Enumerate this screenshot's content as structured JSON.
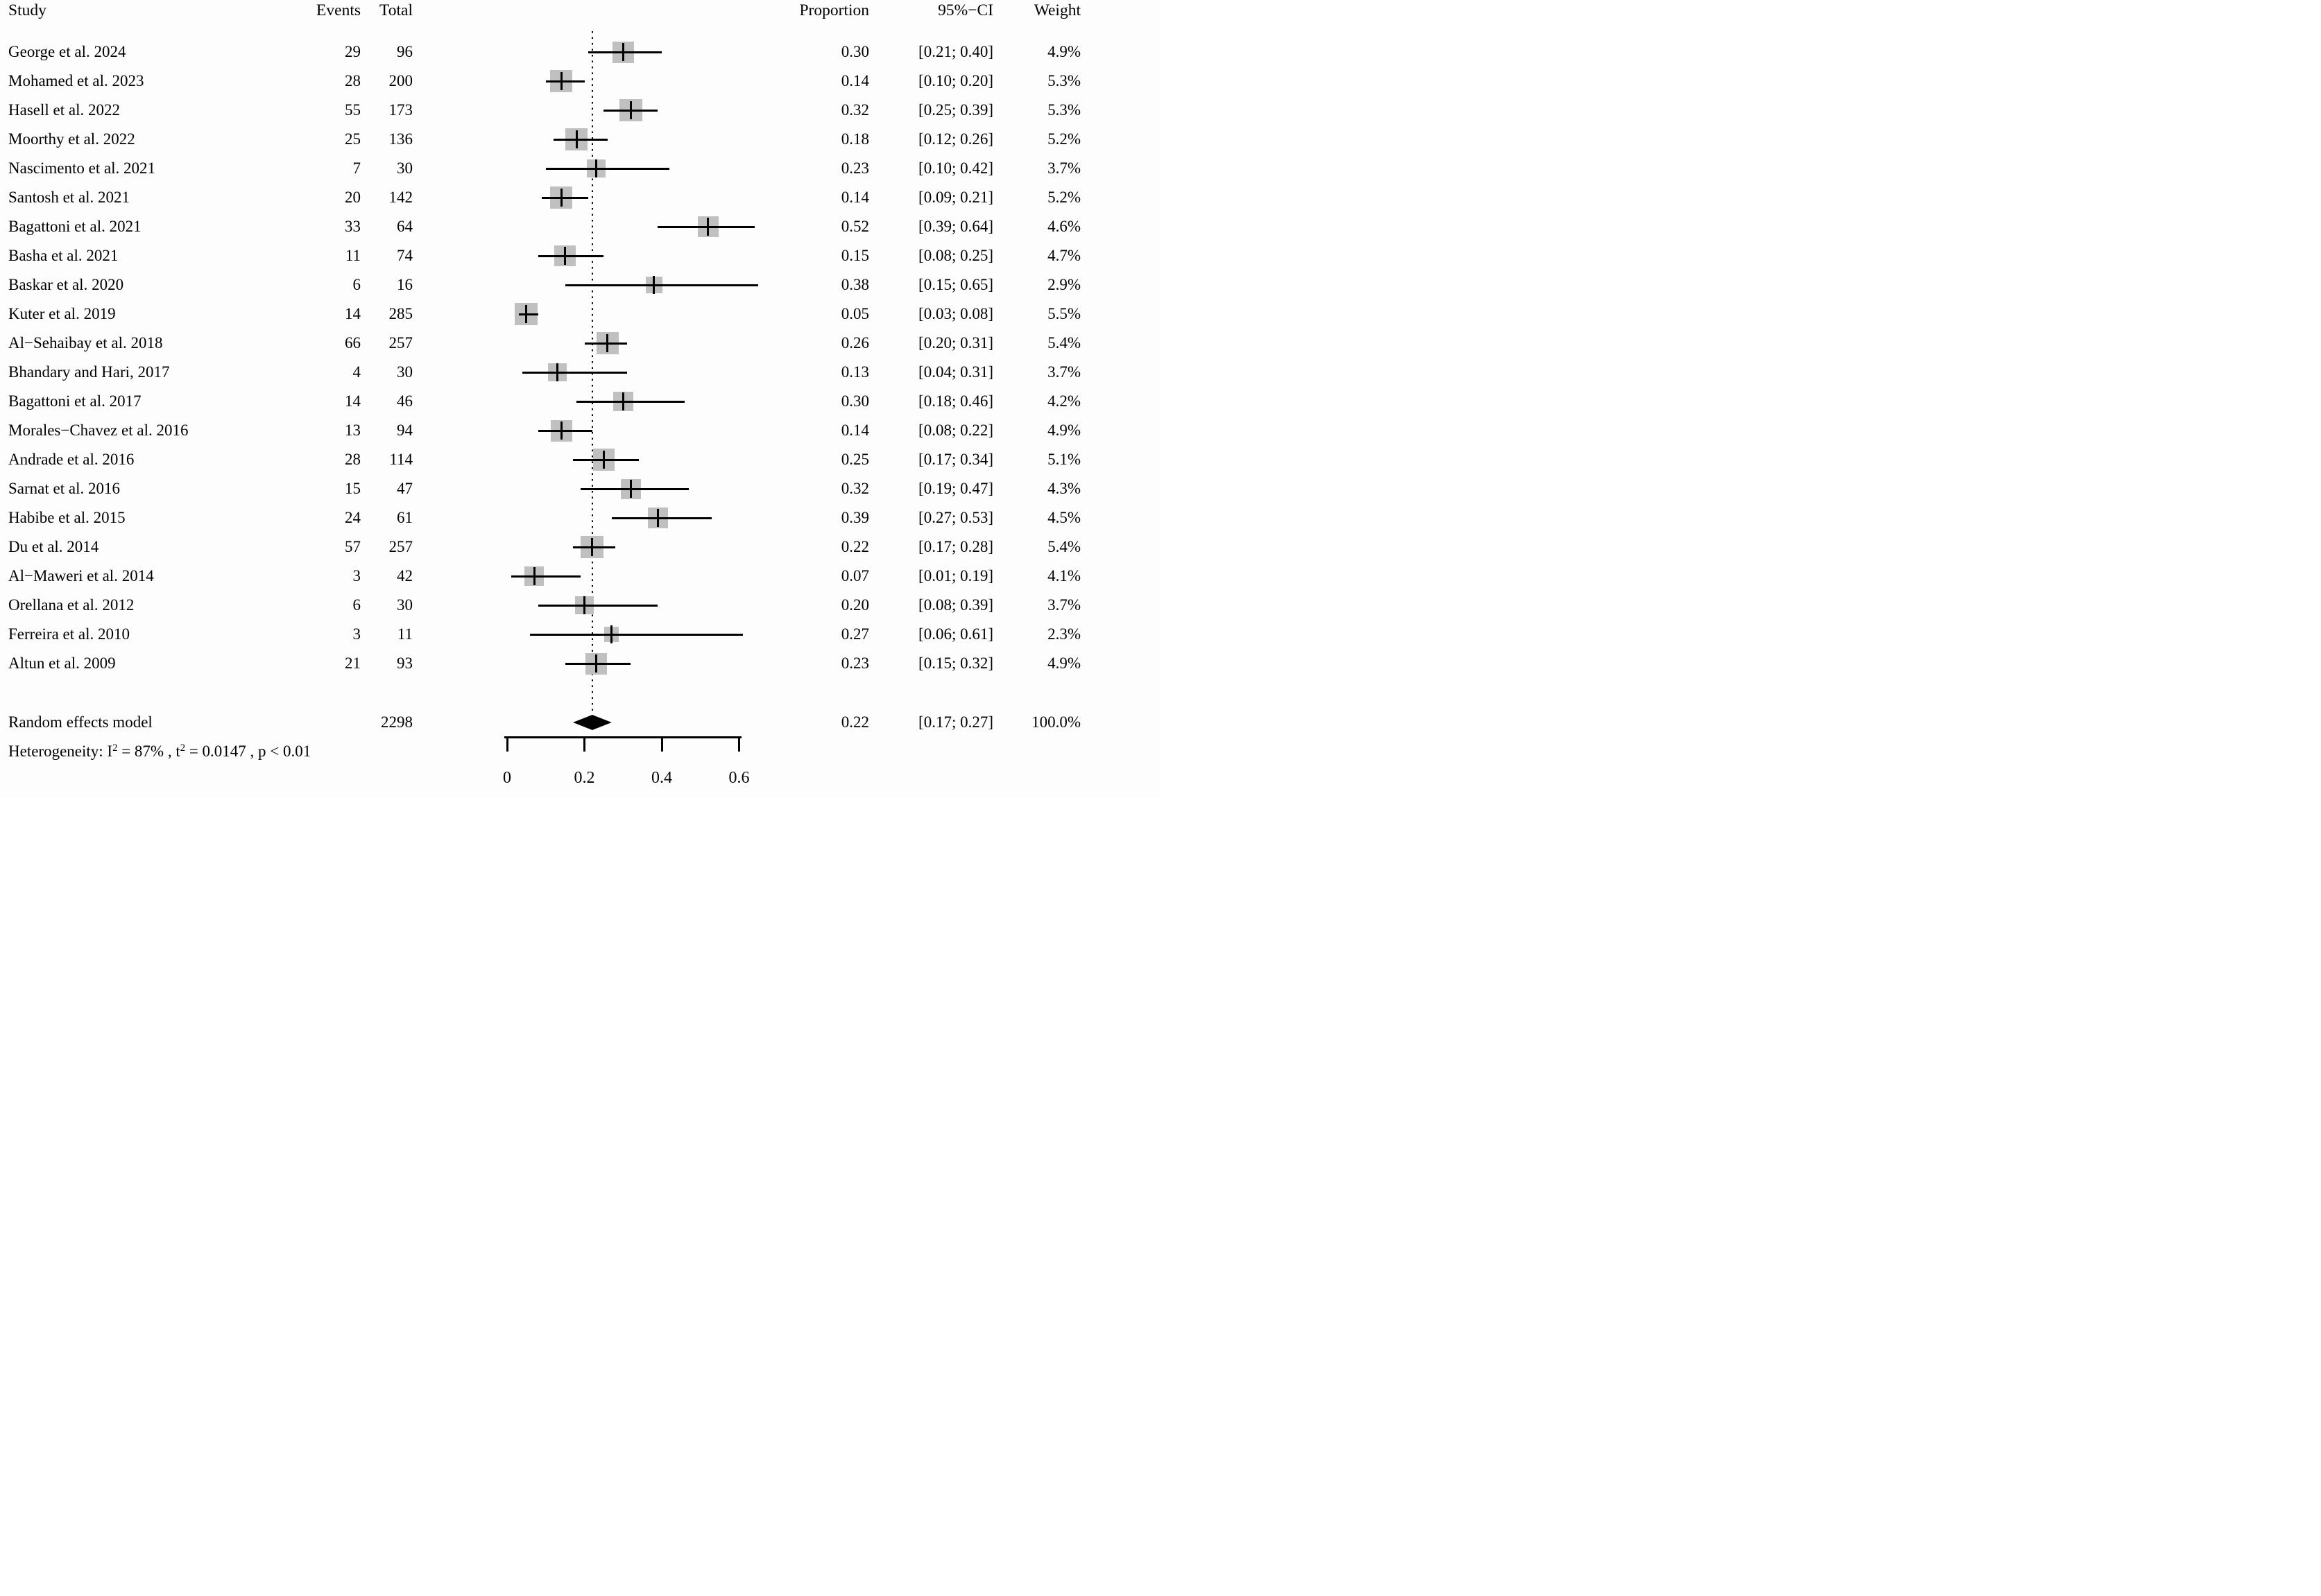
{
  "chart_data": {
    "type": "forest",
    "columns": {
      "study": "Study",
      "events": "Events",
      "total": "Total",
      "proportion": "Proportion",
      "ci": "95%−CI",
      "weight": "Weight"
    },
    "studies": [
      {
        "study": "George et al. 2024",
        "events": "29",
        "total": "96",
        "proportion": 0.3,
        "ci_lo": 0.21,
        "ci_hi": 0.4,
        "proportion_label": "0.30",
        "ci_label": "[0.21; 0.40]",
        "weight": 4.9,
        "weight_label": "4.9%"
      },
      {
        "study": "Mohamed et al. 2023",
        "events": "28",
        "total": "200",
        "proportion": 0.14,
        "ci_lo": 0.1,
        "ci_hi": 0.2,
        "proportion_label": "0.14",
        "ci_label": "[0.10; 0.20]",
        "weight": 5.3,
        "weight_label": "5.3%"
      },
      {
        "study": "Hasell et al. 2022",
        "events": "55",
        "total": "173",
        "proportion": 0.32,
        "ci_lo": 0.25,
        "ci_hi": 0.39,
        "proportion_label": "0.32",
        "ci_label": "[0.25; 0.39]",
        "weight": 5.3,
        "weight_label": "5.3%"
      },
      {
        "study": "Moorthy et al. 2022",
        "events": "25",
        "total": "136",
        "proportion": 0.18,
        "ci_lo": 0.12,
        "ci_hi": 0.26,
        "proportion_label": "0.18",
        "ci_label": "[0.12; 0.26]",
        "weight": 5.2,
        "weight_label": "5.2%"
      },
      {
        "study": "Nascimento et al. 2021",
        "events": "7",
        "total": "30",
        "proportion": 0.23,
        "ci_lo": 0.1,
        "ci_hi": 0.42,
        "proportion_label": "0.23",
        "ci_label": "[0.10; 0.42]",
        "weight": 3.7,
        "weight_label": "3.7%"
      },
      {
        "study": "Santosh et al. 2021",
        "events": "20",
        "total": "142",
        "proportion": 0.14,
        "ci_lo": 0.09,
        "ci_hi": 0.21,
        "proportion_label": "0.14",
        "ci_label": "[0.09; 0.21]",
        "weight": 5.2,
        "weight_label": "5.2%"
      },
      {
        "study": "Bagattoni et al. 2021",
        "events": "33",
        "total": "64",
        "proportion": 0.52,
        "ci_lo": 0.39,
        "ci_hi": 0.64,
        "proportion_label": "0.52",
        "ci_label": "[0.39; 0.64]",
        "weight": 4.6,
        "weight_label": "4.6%"
      },
      {
        "study": "Basha et al. 2021",
        "events": "11",
        "total": "74",
        "proportion": 0.15,
        "ci_lo": 0.08,
        "ci_hi": 0.25,
        "proportion_label": "0.15",
        "ci_label": "[0.08; 0.25]",
        "weight": 4.7,
        "weight_label": "4.7%"
      },
      {
        "study": "Baskar et al. 2020",
        "events": "6",
        "total": "16",
        "proportion": 0.38,
        "ci_lo": 0.15,
        "ci_hi": 0.65,
        "proportion_label": "0.38",
        "ci_label": "[0.15; 0.65]",
        "weight": 2.9,
        "weight_label": "2.9%"
      },
      {
        "study": "Kuter et al. 2019",
        "events": "14",
        "total": "285",
        "proportion": 0.05,
        "ci_lo": 0.03,
        "ci_hi": 0.08,
        "proportion_label": "0.05",
        "ci_label": "[0.03; 0.08]",
        "weight": 5.5,
        "weight_label": "5.5%"
      },
      {
        "study": "Al−Sehaibay et al. 2018",
        "events": "66",
        "total": "257",
        "proportion": 0.26,
        "ci_lo": 0.2,
        "ci_hi": 0.31,
        "proportion_label": "0.26",
        "ci_label": "[0.20; 0.31]",
        "weight": 5.4,
        "weight_label": "5.4%"
      },
      {
        "study": "Bhandary and Hari, 2017",
        "events": "4",
        "total": "30",
        "proportion": 0.13,
        "ci_lo": 0.04,
        "ci_hi": 0.31,
        "proportion_label": "0.13",
        "ci_label": "[0.04; 0.31]",
        "weight": 3.7,
        "weight_label": "3.7%"
      },
      {
        "study": "Bagattoni et al. 2017",
        "events": "14",
        "total": "46",
        "proportion": 0.3,
        "ci_lo": 0.18,
        "ci_hi": 0.46,
        "proportion_label": "0.30",
        "ci_label": "[0.18; 0.46]",
        "weight": 4.2,
        "weight_label": "4.2%"
      },
      {
        "study": "Morales−Chavez et al. 2016",
        "events": "13",
        "total": "94",
        "proportion": 0.14,
        "ci_lo": 0.08,
        "ci_hi": 0.22,
        "proportion_label": "0.14",
        "ci_label": "[0.08; 0.22]",
        "weight": 4.9,
        "weight_label": "4.9%"
      },
      {
        "study": "Andrade et al. 2016",
        "events": "28",
        "total": "114",
        "proportion": 0.25,
        "ci_lo": 0.17,
        "ci_hi": 0.34,
        "proportion_label": "0.25",
        "ci_label": "[0.17; 0.34]",
        "weight": 5.1,
        "weight_label": "5.1%"
      },
      {
        "study": "Sarnat et al. 2016",
        "events": "15",
        "total": "47",
        "proportion": 0.32,
        "ci_lo": 0.19,
        "ci_hi": 0.47,
        "proportion_label": "0.32",
        "ci_label": "[0.19; 0.47]",
        "weight": 4.3,
        "weight_label": "4.3%"
      },
      {
        "study": "Habibe et al. 2015",
        "events": "24",
        "total": "61",
        "proportion": 0.39,
        "ci_lo": 0.27,
        "ci_hi": 0.53,
        "proportion_label": "0.39",
        "ci_label": "[0.27; 0.53]",
        "weight": 4.5,
        "weight_label": "4.5%"
      },
      {
        "study": "Du et al. 2014",
        "events": "57",
        "total": "257",
        "proportion": 0.22,
        "ci_lo": 0.17,
        "ci_hi": 0.28,
        "proportion_label": "0.22",
        "ci_label": "[0.17; 0.28]",
        "weight": 5.4,
        "weight_label": "5.4%"
      },
      {
        "study": "Al−Maweri et al. 2014",
        "events": "3",
        "total": "42",
        "proportion": 0.07,
        "ci_lo": 0.01,
        "ci_hi": 0.19,
        "proportion_label": "0.07",
        "ci_label": "[0.01; 0.19]",
        "weight": 4.1,
        "weight_label": "4.1%"
      },
      {
        "study": "Orellana et al. 2012",
        "events": "6",
        "total": "30",
        "proportion": 0.2,
        "ci_lo": 0.08,
        "ci_hi": 0.39,
        "proportion_label": "0.20",
        "ci_label": "[0.08; 0.39]",
        "weight": 3.7,
        "weight_label": "3.7%"
      },
      {
        "study": "Ferreira et al. 2010",
        "events": "3",
        "total": "11",
        "proportion": 0.27,
        "ci_lo": 0.06,
        "ci_hi": 0.61,
        "proportion_label": "0.27",
        "ci_label": "[0.06; 0.61]",
        "weight": 2.3,
        "weight_label": "2.3%"
      },
      {
        "study": "Altun et al. 2009",
        "events": "21",
        "total": "93",
        "proportion": 0.23,
        "ci_lo": 0.15,
        "ci_hi": 0.32,
        "proportion_label": "0.23",
        "ci_label": "[0.15; 0.32]",
        "weight": 4.9,
        "weight_label": "4.9%"
      }
    ],
    "pooled": {
      "label": "Random effects model",
      "total": "2298",
      "proportion": 0.22,
      "ci_lo": 0.17,
      "ci_hi": 0.27,
      "proportion_label": "0.22",
      "ci_label": "[0.17; 0.27]",
      "weight_label": "100.0%"
    },
    "heterogeneity_segments": [
      {
        "text": "Heterogeneity:   I",
        "style": ""
      },
      {
        "text": "2",
        "style": "sup"
      },
      {
        "text": " = 87% , t",
        "style": ""
      },
      {
        "text": "2",
        "style": "sup"
      },
      {
        "text": " = 0.0147 , p < 0.01",
        "style": ""
      }
    ],
    "axis": {
      "ticks": [
        0,
        0.2,
        0.4,
        0.6
      ],
      "tick_labels": [
        "0",
        "0.2",
        "0.4",
        "0.6"
      ],
      "xmin": 0,
      "xmax": 0.68,
      "null_value": 0.22,
      "grid": false,
      "legend": "none"
    },
    "colors": {
      "square": "#c0c0c0",
      "line": "#000000",
      "diamond": "#000000",
      "text": "#000000",
      "background": "#fdfdfd"
    }
  }
}
